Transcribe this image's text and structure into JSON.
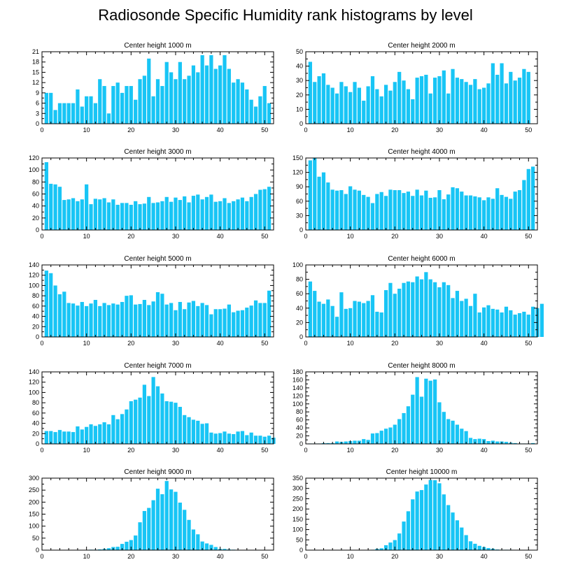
{
  "title": "Radiosonde Specific Humidity rank histograms by level",
  "colors": {
    "bar": "#18c5f5",
    "axis": "#000000"
  },
  "chart_data": [
    {
      "type": "bar",
      "title": "Center height 1000 m",
      "xlabel": "",
      "ylabel": "",
      "xlim": [
        0,
        52
      ],
      "ylim": [
        0,
        21
      ],
      "xticks": [
        0,
        10,
        20,
        30,
        40,
        50
      ],
      "yticks": [
        0,
        3,
        6,
        9,
        12,
        15,
        18,
        21
      ],
      "values": [
        9,
        9,
        4,
        6,
        6,
        6,
        6,
        10,
        5,
        8,
        8,
        6,
        13,
        11,
        3,
        11,
        12,
        9,
        11,
        11,
        7,
        13,
        14,
        19,
        8,
        13,
        11,
        18,
        15,
        13,
        18,
        13,
        14,
        17,
        15,
        20,
        17,
        20,
        16,
        17,
        20,
        16,
        12,
        13,
        12,
        10,
        7,
        5,
        8,
        11,
        6
      ]
    },
    {
      "type": "bar",
      "title": "Center height 2000 m",
      "xlabel": "",
      "ylabel": "",
      "xlim": [
        0,
        52
      ],
      "ylim": [
        0,
        50
      ],
      "xticks": [
        0,
        10,
        20,
        30,
        40,
        50
      ],
      "yticks": [
        0,
        10,
        20,
        30,
        40,
        50
      ],
      "values": [
        43,
        29,
        33,
        35,
        27,
        25,
        21,
        29,
        26,
        22,
        29,
        25,
        16,
        26,
        33,
        24,
        19,
        27,
        23,
        29,
        36,
        30,
        24,
        17,
        32,
        33,
        34,
        21,
        32,
        33,
        37,
        21,
        38,
        32,
        31,
        29,
        27,
        31,
        24,
        25,
        28,
        42,
        34,
        42,
        28,
        36,
        30,
        32,
        38,
        36
      ]
    },
    {
      "type": "bar",
      "title": "Center height 3000 m",
      "xlabel": "",
      "ylabel": "",
      "xlim": [
        0,
        52
      ],
      "ylim": [
        0,
        120
      ],
      "xticks": [
        0,
        10,
        20,
        30,
        40,
        50
      ],
      "yticks": [
        0,
        20,
        40,
        60,
        80,
        100,
        120
      ],
      "values": [
        113,
        77,
        76,
        72,
        50,
        51,
        53,
        48,
        51,
        76,
        43,
        52,
        51,
        53,
        46,
        51,
        42,
        45,
        45,
        42,
        48,
        43,
        44,
        55,
        45,
        46,
        48,
        55,
        47,
        54,
        50,
        56,
        46,
        57,
        59,
        51,
        55,
        59,
        47,
        48,
        53,
        45,
        48,
        51,
        54,
        48,
        55,
        60,
        67,
        68,
        72
      ]
    },
    {
      "type": "bar",
      "title": "Center height 4000 m",
      "xlabel": "",
      "ylabel": "",
      "xlim": [
        0,
        52
      ],
      "ylim": [
        0,
        150
      ],
      "xticks": [
        0,
        10,
        20,
        30,
        40,
        50
      ],
      "yticks": [
        0,
        30,
        60,
        90,
        120,
        150
      ],
      "values": [
        145,
        150,
        111,
        120,
        99,
        84,
        82,
        83,
        75,
        91,
        84,
        82,
        73,
        69,
        56,
        75,
        79,
        71,
        84,
        83,
        83,
        77,
        80,
        71,
        84,
        72,
        82,
        67,
        68,
        83,
        64,
        74,
        89,
        87,
        80,
        72,
        72,
        70,
        68,
        62,
        68,
        65,
        87,
        73,
        69,
        65,
        80,
        83,
        104,
        127,
        132
      ]
    },
    {
      "type": "bar",
      "title": "Center height 5000 m",
      "xlabel": "",
      "ylabel": "",
      "xlim": [
        0,
        52
      ],
      "ylim": [
        0,
        140
      ],
      "xticks": [
        0,
        10,
        20,
        30,
        40,
        50
      ],
      "yticks": [
        0,
        20,
        40,
        60,
        80,
        100,
        120,
        140
      ],
      "values": [
        129,
        124,
        100,
        83,
        88,
        66,
        65,
        61,
        68,
        60,
        65,
        72,
        60,
        66,
        62,
        65,
        63,
        68,
        80,
        81,
        63,
        64,
        72,
        62,
        69,
        87,
        84,
        63,
        66,
        52,
        68,
        54,
        67,
        70,
        60,
        66,
        62,
        44,
        54,
        54,
        55,
        63,
        48,
        51,
        52,
        57,
        61,
        71,
        66,
        66,
        90
      ]
    },
    {
      "type": "bar",
      "title": "Center height 6000 m",
      "xlabel": "",
      "ylabel": "",
      "xlim": [
        0,
        52
      ],
      "ylim": [
        0,
        100
      ],
      "xticks": [
        0,
        10,
        20,
        30,
        40,
        50
      ],
      "yticks": [
        0,
        20,
        40,
        60,
        80,
        100
      ],
      "values": [
        77,
        64,
        49,
        46,
        52,
        43,
        28,
        62,
        39,
        40,
        50,
        49,
        47,
        50,
        58,
        35,
        34,
        65,
        75,
        60,
        67,
        75,
        77,
        76,
        84,
        80,
        90,
        80,
        76,
        69,
        76,
        72,
        54,
        64,
        50,
        53,
        43,
        60,
        34,
        41,
        44,
        39,
        38,
        34,
        42,
        37,
        31,
        33,
        35,
        31,
        42,
        40,
        46
      ]
    },
    {
      "type": "bar",
      "title": "Center height 7000 m",
      "xlabel": "",
      "ylabel": "",
      "xlim": [
        0,
        52
      ],
      "ylim": [
        0,
        140
      ],
      "xticks": [
        0,
        10,
        20,
        30,
        40,
        50
      ],
      "yticks": [
        0,
        20,
        40,
        60,
        80,
        100,
        120,
        140
      ],
      "values": [
        25,
        25,
        23,
        27,
        24,
        24,
        23,
        34,
        28,
        33,
        38,
        35,
        38,
        42,
        38,
        56,
        48,
        58,
        67,
        83,
        86,
        90,
        115,
        93,
        130,
        112,
        98,
        83,
        82,
        80,
        72,
        56,
        52,
        47,
        45,
        39,
        40,
        22,
        20,
        21,
        24,
        20,
        19,
        24,
        25,
        17,
        22,
        16,
        16,
        14,
        16,
        12
      ]
    },
    {
      "type": "bar",
      "title": "Center height 8000 m",
      "xlabel": "",
      "ylabel": "",
      "xlim": [
        0,
        52
      ],
      "ylim": [
        0,
        180
      ],
      "xticks": [
        0,
        10,
        20,
        30,
        40,
        50
      ],
      "yticks": [
        0,
        20,
        40,
        60,
        80,
        100,
        120,
        140,
        160,
        180
      ],
      "values": [
        1,
        1,
        1,
        2,
        2,
        2,
        6,
        5,
        6,
        7,
        8,
        8,
        12,
        10,
        26,
        27,
        33,
        38,
        41,
        48,
        62,
        77,
        94,
        123,
        167,
        118,
        163,
        158,
        161,
        104,
        80,
        62,
        58,
        48,
        38,
        32,
        15,
        12,
        13,
        12,
        7,
        8,
        6,
        6,
        5,
        3,
        2,
        1,
        1,
        1,
        2
      ]
    },
    {
      "type": "bar",
      "title": "Center height 9000 m",
      "xlabel": "",
      "ylabel": "",
      "xlim": [
        0,
        52
      ],
      "ylim": [
        0,
        300
      ],
      "xticks": [
        0,
        10,
        20,
        30,
        40,
        50
      ],
      "yticks": [
        0,
        50,
        100,
        150,
        200,
        250,
        300
      ],
      "values": [
        1,
        1,
        1,
        1,
        1,
        1,
        1,
        1,
        1,
        1,
        2,
        2,
        3,
        5,
        8,
        13,
        14,
        26,
        35,
        42,
        61,
        116,
        163,
        176,
        208,
        256,
        233,
        288,
        253,
        243,
        198,
        168,
        126,
        86,
        66,
        36,
        28,
        22,
        13,
        5,
        5,
        3,
        2,
        1,
        1,
        1,
        1,
        1,
        1,
        1,
        1
      ]
    },
    {
      "type": "bar",
      "title": "Center height 10000 m",
      "xlabel": "",
      "ylabel": "",
      "xlim": [
        0,
        52
      ],
      "ylim": [
        0,
        350
      ],
      "xticks": [
        0,
        10,
        20,
        30,
        40,
        50
      ],
      "yticks": [
        0,
        50,
        100,
        150,
        200,
        250,
        300,
        350
      ],
      "values": [
        1,
        1,
        1,
        1,
        1,
        1,
        1,
        1,
        1,
        1,
        1,
        1,
        1,
        1,
        2,
        6,
        9,
        24,
        37,
        49,
        81,
        139,
        189,
        247,
        285,
        292,
        319,
        341,
        340,
        325,
        271,
        219,
        183,
        145,
        110,
        73,
        43,
        31,
        21,
        15,
        10,
        7,
        3,
        2,
        2,
        2,
        1,
        1,
        1,
        1,
        1
      ]
    }
  ]
}
